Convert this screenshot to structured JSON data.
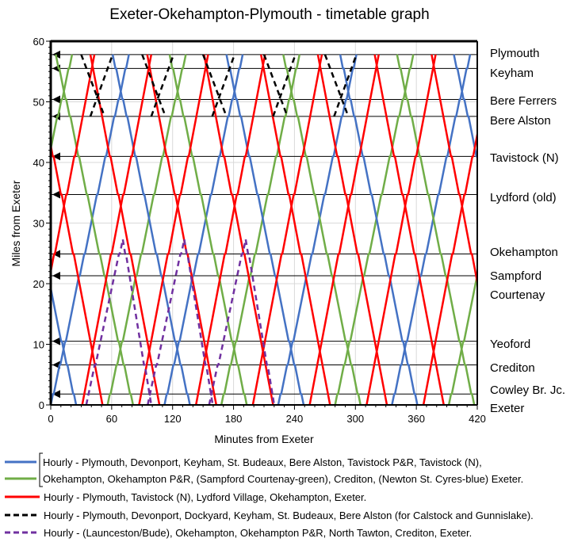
{
  "chart_data": {
    "type": "line",
    "title": "Exeter-Okehampton-Plymouth - timetable graph",
    "xlabel": "Minutes from Exeter",
    "ylabel": "Miles from Exeter",
    "xlim": [
      0,
      420
    ],
    "ylim": [
      0,
      60
    ],
    "xticks": [
      "0",
      "60",
      "120",
      "180",
      "240",
      "300",
      "360",
      "420"
    ],
    "yticks": [
      "0",
      "10",
      "20",
      "30",
      "40",
      "50",
      "60"
    ],
    "grid": true,
    "stations": [
      {
        "name": "Plymouth",
        "miles": 57.8
      },
      {
        "name": "Keyham",
        "miles": 55.5
      },
      {
        "name": "Bere Ferrers",
        "miles": 50.4
      },
      {
        "name": "Bere Alston",
        "miles": 47.6
      },
      {
        "name": "Tavistock (N)",
        "miles": 41.0
      },
      {
        "name": "Lydford (old)",
        "miles": 34.7
      },
      {
        "name": "Okehampton",
        "miles": 24.9
      },
      {
        "name": "Sampford Courtenay",
        "miles": 21.3
      },
      {
        "name": "Yeoford",
        "miles": 10.5
      },
      {
        "name": "Crediton",
        "miles": 6.6
      },
      {
        "name": "Cowley Br. Jc.",
        "miles": 1.8
      },
      {
        "name": "Exeter",
        "miles": 0
      }
    ],
    "series": [
      {
        "name": "blue-green",
        "colors": [
          "#4472C4",
          "#70AD47"
        ],
        "dash": false,
        "up": {
          "from": 0,
          "to": 57.8,
          "duration": 77,
          "first": -56,
          "period": 56,
          "count": 9,
          "color_offset": 1
        },
        "down": {
          "from": 57.8,
          "to": 0,
          "duration": 76,
          "first": -51,
          "period": 56,
          "count": 10,
          "color_offset": 0
        },
        "stops": [
          1.8,
          6.6,
          10.5,
          21.3,
          24.9,
          34.7,
          41.0,
          47.6,
          50.4,
          55.5
        ]
      },
      {
        "name": "red",
        "colors": [
          "#FF0000"
        ],
        "dash": false,
        "up": {
          "from": 0,
          "to": 57.8,
          "duration": 68,
          "first": -81,
          "period": 56,
          "count": 10,
          "color_offset": 0
        },
        "down": {
          "from": 57.8,
          "to": 0,
          "duration": 68,
          "first": -73,
          "period": 56,
          "count": 10,
          "color_offset": 0
        },
        "stops": [
          24.9,
          34.7,
          41.0
        ]
      },
      {
        "name": "black",
        "colors": [
          "#000000"
        ],
        "dash": true,
        "up": {
          "from": 47.6,
          "to": 57.8,
          "duration": 22,
          "first": 39,
          "period": 60,
          "count": 5,
          "color_offset": 0
        },
        "down": {
          "from": 57.8,
          "to": 47.6,
          "duration": 23,
          "first": 30,
          "period": 60,
          "count": 5,
          "color_offset": 0
        },
        "stops": []
      },
      {
        "name": "purple",
        "colors": [
          "#7030A0"
        ],
        "dash": true,
        "up": {
          "from": 0,
          "to": 27.3,
          "duration": 36,
          "first": 35,
          "period": 60.5,
          "count": 3,
          "color_offset": 0
        },
        "down": {
          "from": 27.3,
          "to": 0,
          "duration": 28,
          "first": 71,
          "period": 60.5,
          "count": 3,
          "color_offset": 0
        },
        "stops": [
          6.6,
          24.9
        ]
      }
    ]
  },
  "legend": [
    {
      "color": "#4472C4",
      "dash": false,
      "text": "Hourly - Plymouth, Devonport, Keyham, St. Budeaux, Bere Alston, Tavistock P&R, Tavistock (N),"
    },
    {
      "color": "#70AD47",
      "dash": false,
      "text": "Okehampton, Okehampton P&R, (Sampford Courtenay-green), Crediton, (Newton St. Cyres-blue) Exeter."
    },
    {
      "color": "#FF0000",
      "dash": false,
      "text": "Hourly - Plymouth, Tavistock (N), Lydford Village, Okehampton, Exeter."
    },
    {
      "color": "#000000",
      "dash": true,
      "text": "Hourly - Plymouth, Devonport, Dockyard, Keyham, St. Budeaux, Bere Alston (for Calstock and Gunnislake)."
    },
    {
      "color": "#7030A0",
      "dash": true,
      "text": "Hourly - (Launceston/Bude), Okehampton, Okehampton P&R, North Tawton, Crediton, Exeter."
    }
  ]
}
